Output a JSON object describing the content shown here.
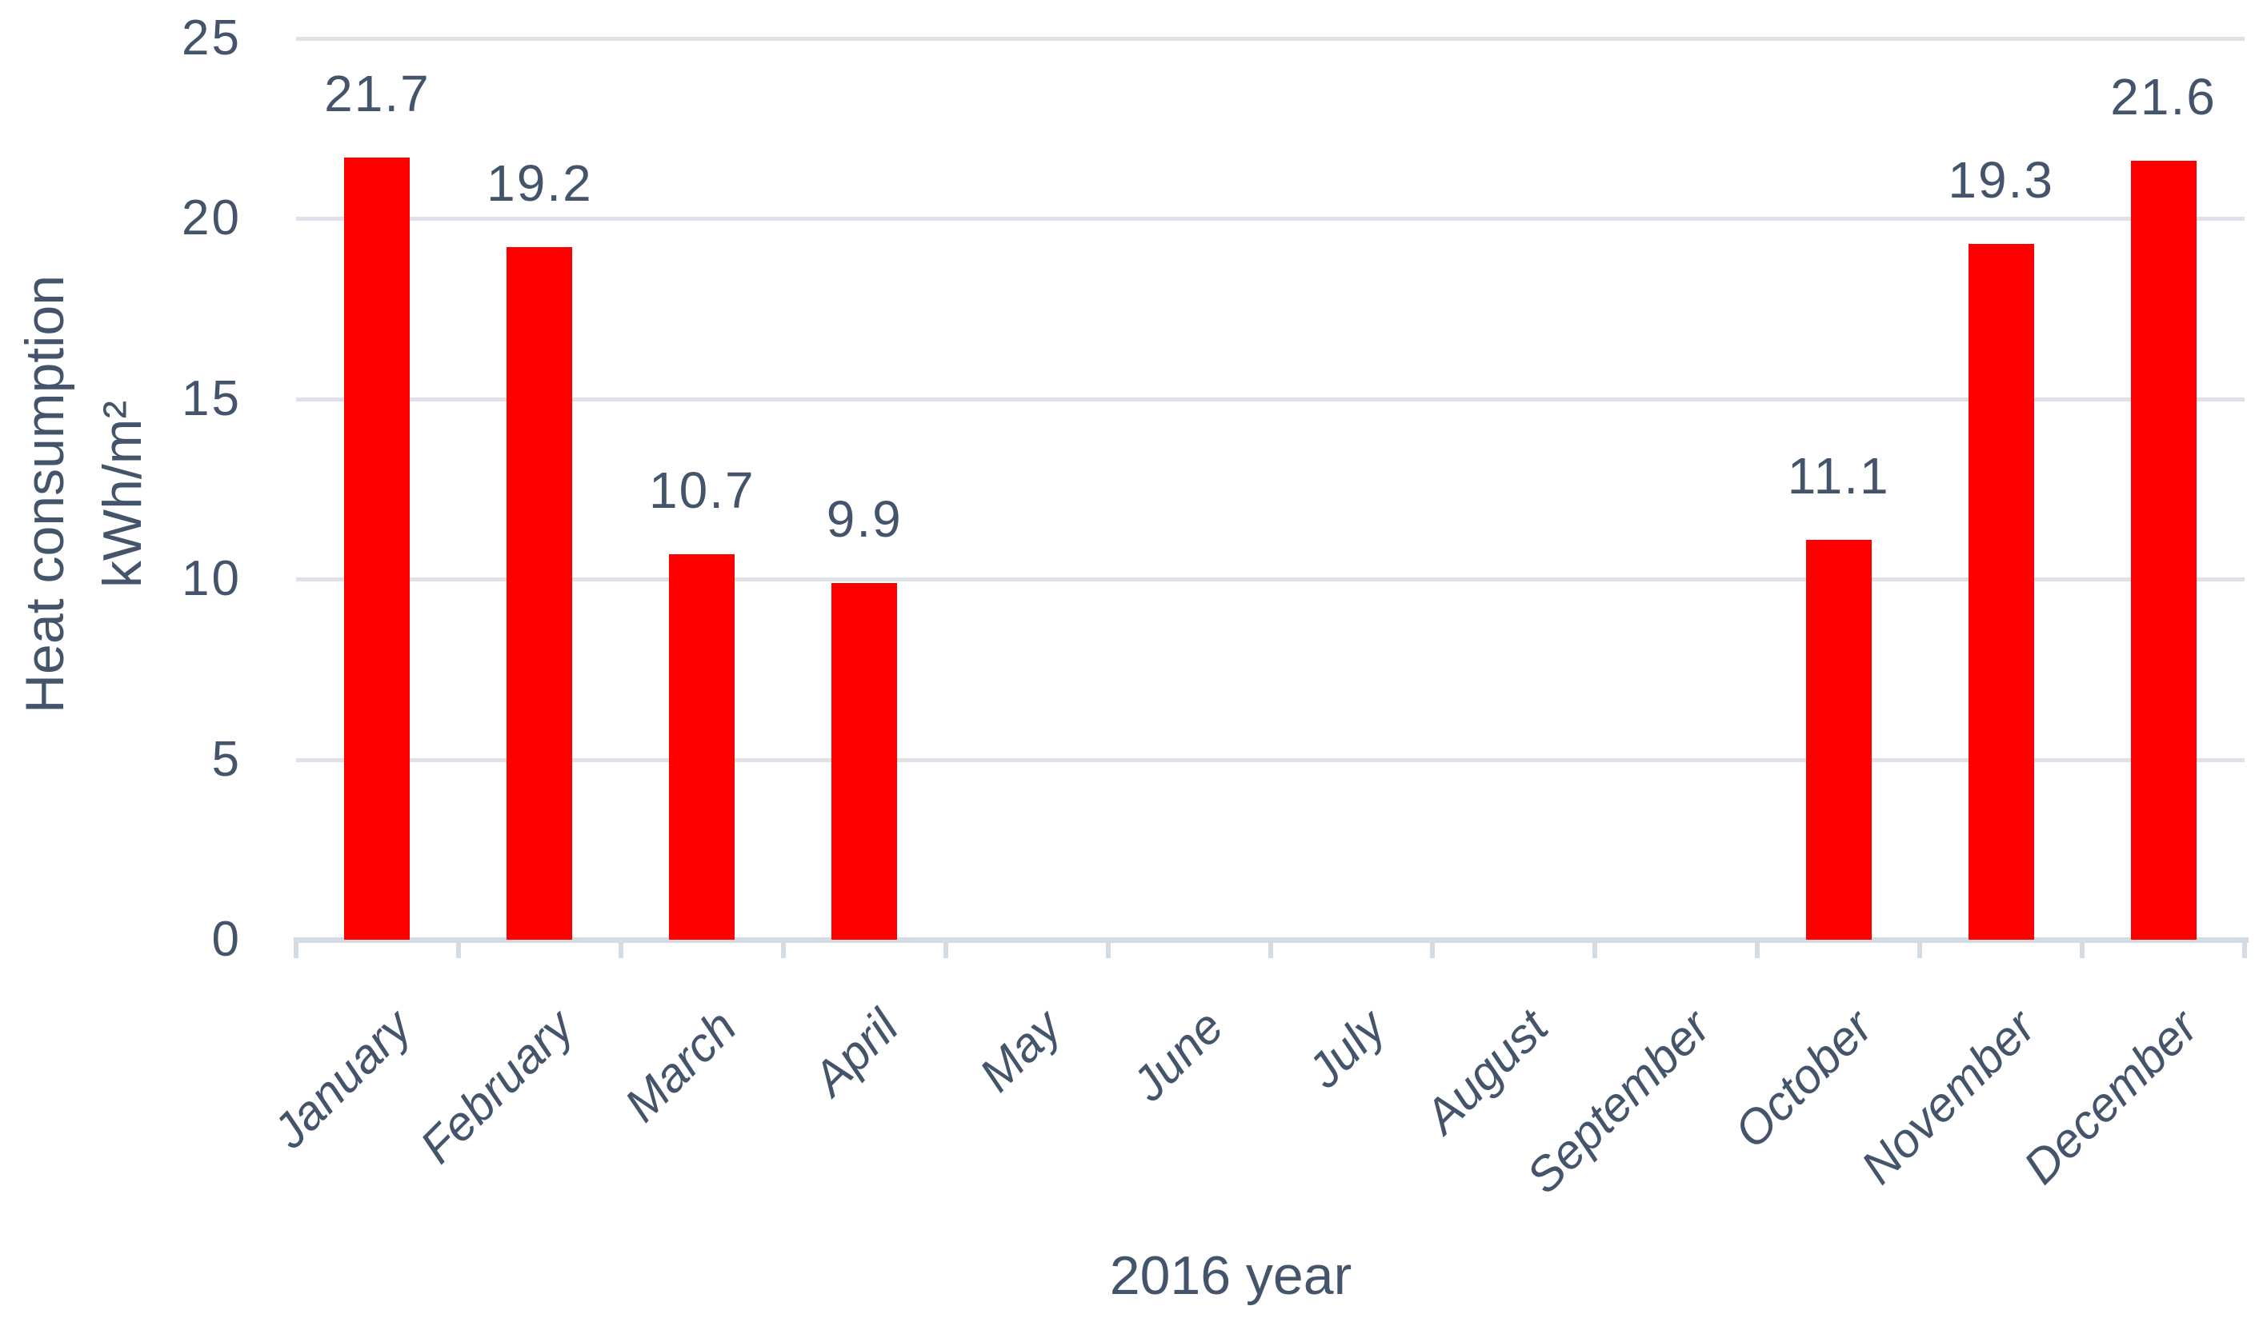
{
  "chart_data": {
    "type": "bar",
    "title": "",
    "xlabel": "2016 year",
    "ylabel_lines": [
      "Heat consumption",
      "kWh/m²"
    ],
    "categories": [
      "January",
      "February",
      "March",
      "April",
      "May",
      "June",
      "July",
      "August",
      "September",
      "October",
      "November",
      "December"
    ],
    "values": [
      21.7,
      19.2,
      10.7,
      9.9,
      0,
      0,
      0,
      0,
      0,
      11.1,
      19.3,
      21.6
    ],
    "data_labels": [
      "21.7",
      "19.2",
      "10.7",
      "9.9",
      "",
      "",
      "",
      "",
      "",
      "11.1",
      "19.3",
      "21.6"
    ],
    "y_ticks": [
      0,
      5,
      10,
      15,
      20,
      25
    ],
    "ylim": [
      0,
      25
    ],
    "grid": "horizontal",
    "legend": "none",
    "x_label_rotation_deg": -45,
    "bar_color": "#ff0000",
    "text_color": "#44546a",
    "gridline_color": "#dde2e9",
    "axis_color": "#d5dbe3",
    "background_color": "#ffffff"
  }
}
